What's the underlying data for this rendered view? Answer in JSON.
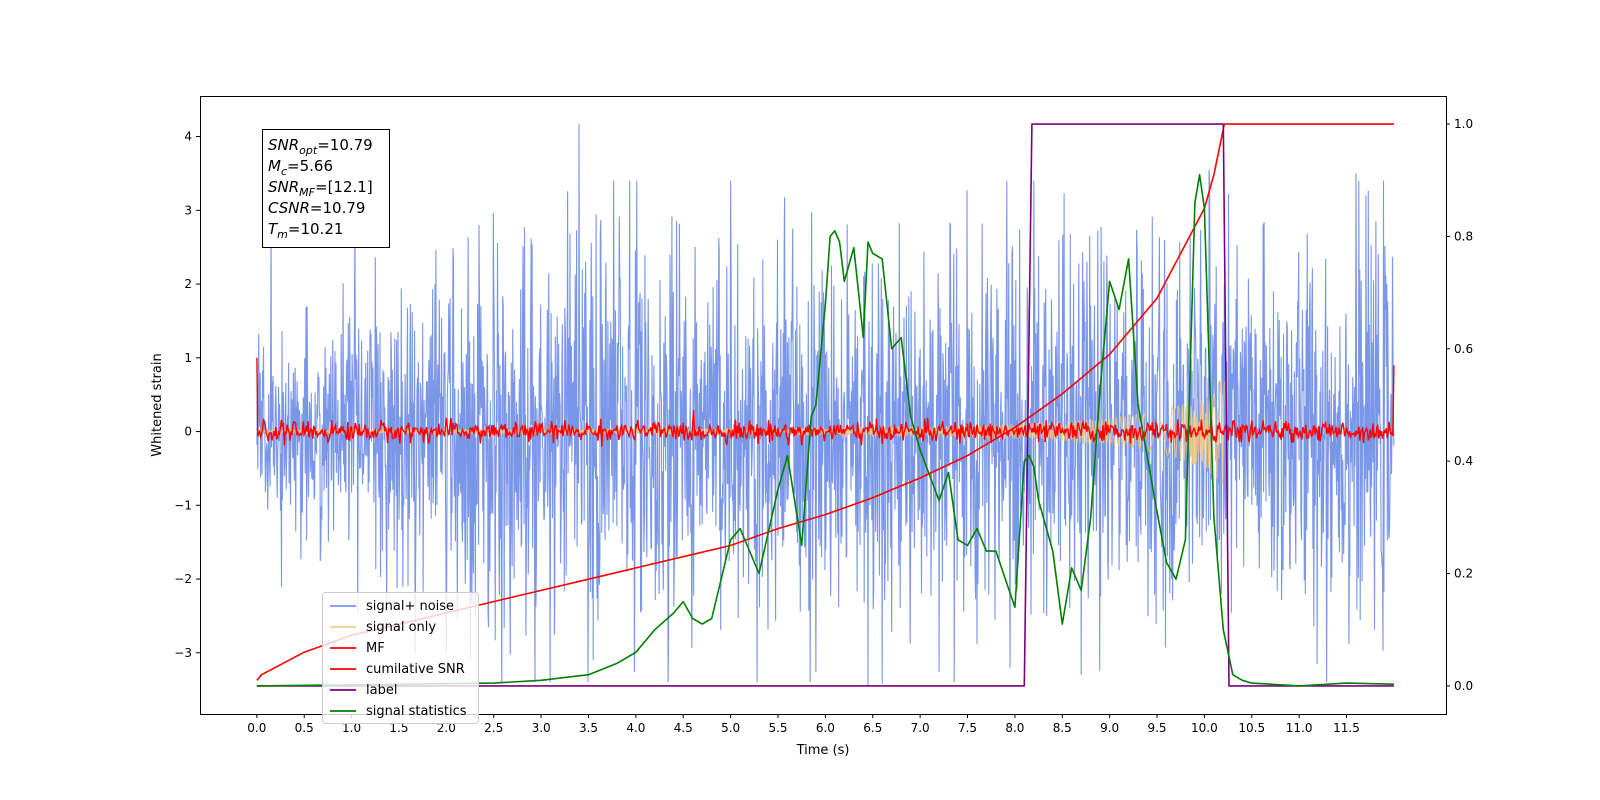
{
  "chart_data": {
    "type": "line",
    "title": "",
    "xlabel": "Time (s)",
    "ylabel": "Whitened strain",
    "ylabel_right": "",
    "xlim": [
      -0.6,
      12.55
    ],
    "ylim": [
      -3.83,
      4.55
    ],
    "ylim_right": [
      -0.05,
      1.05
    ],
    "x_ticks": [
      "0.0",
      "0.5",
      "1.0",
      "1.5",
      "2.0",
      "2.5",
      "3.0",
      "3.5",
      "4.0",
      "4.5",
      "5.0",
      "5.5",
      "6.0",
      "6.5",
      "7.0",
      "7.5",
      "8.0",
      "8.5",
      "9.0",
      "9.5",
      "10.0",
      "10.5",
      "11.0",
      "11.5"
    ],
    "y_ticks_left": [
      "4",
      "3",
      "2",
      "1",
      "0",
      "−1",
      "−2",
      "−3"
    ],
    "y_ticks_right": [
      "1.0",
      "0.8",
      "0.6",
      "0.4",
      "0.2",
      "0.0"
    ],
    "grid": false,
    "legend_position": "lower-left",
    "annotation": [
      {
        "var": "SNR",
        "sub": "opt",
        "value": "=10.79"
      },
      {
        "var": "M",
        "sub": "c",
        "value": "=5.66"
      },
      {
        "var": "SNR",
        "sub": "MF",
        "value": "=[12.1]"
      },
      {
        "var": "CSNR",
        "sub": "",
        "value": "=10.79"
      },
      {
        "var": "T",
        "sub": "m",
        "value": "=10.21"
      }
    ],
    "series": [
      {
        "name": "signal+ noise",
        "color": "#7a96e8",
        "axis": "left",
        "x_range": [
          0,
          12
        ],
        "envelope": [
          [
            0,
            1.6
          ],
          [
            3.4,
            4.17
          ],
          [
            6.45,
            3.4
          ],
          [
            12,
            3.5
          ]
        ],
        "extremes": {
          "max": 4.17,
          "min": -3.45
        }
      },
      {
        "name": "signal only",
        "color": "#f5c77a",
        "axis": "left",
        "x_range": [
          0,
          10.21
        ],
        "envelope": [
          [
            0,
            0.02
          ],
          [
            6,
            0.05
          ],
          [
            8,
            0.1
          ],
          [
            9,
            0.18
          ],
          [
            9.5,
            0.28
          ],
          [
            10,
            0.5
          ],
          [
            10.21,
            0.75
          ]
        ]
      },
      {
        "name": "MF",
        "color": "#ff0000",
        "axis": "left",
        "x_range": [
          0,
          12
        ],
        "band": 0.15,
        "edge_values": [
          1.0,
          0.9
        ]
      },
      {
        "name": "cumilative SNR",
        "color": "#ff0000",
        "axis": "right",
        "x": [
          0,
          0.05,
          0.5,
          1.0,
          1.5,
          2.0,
          2.5,
          3.0,
          3.5,
          4.0,
          4.5,
          5.0,
          5.5,
          6.0,
          6.5,
          7.0,
          7.5,
          8.0,
          8.5,
          9.0,
          9.5,
          10.0,
          10.1,
          10.21,
          10.5,
          11.0,
          11.5,
          12.0
        ],
        "y": [
          0.01,
          0.02,
          0.06,
          0.09,
          0.11,
          0.13,
          0.15,
          0.17,
          0.19,
          0.21,
          0.23,
          0.25,
          0.28,
          0.305,
          0.335,
          0.37,
          0.41,
          0.46,
          0.52,
          0.59,
          0.69,
          0.85,
          0.91,
          1.0,
          1.0,
          1.0,
          1.0,
          1.0
        ]
      },
      {
        "name": "label",
        "color": "#7b0080",
        "axis": "right",
        "x": [
          0,
          8.1,
          8.18,
          10.2,
          10.26,
          12.0
        ],
        "y": [
          0,
          0,
          1.0,
          1.0,
          0,
          0
        ]
      },
      {
        "name": "signal statistics",
        "color": "#008000",
        "axis": "right",
        "x": [
          0,
          2.5,
          3.0,
          3.5,
          3.8,
          4.0,
          4.2,
          4.4,
          4.5,
          4.6,
          4.7,
          4.8,
          5.0,
          5.1,
          5.3,
          5.5,
          5.6,
          5.75,
          5.85,
          5.9,
          6.0,
          6.05,
          6.1,
          6.15,
          6.2,
          6.3,
          6.4,
          6.45,
          6.5,
          6.6,
          6.7,
          6.8,
          6.9,
          7.0,
          7.2,
          7.3,
          7.4,
          7.5,
          7.6,
          7.7,
          7.8,
          7.9,
          8.0,
          8.1,
          8.15,
          8.2,
          8.25,
          8.4,
          8.5,
          8.6,
          8.7,
          8.8,
          8.9,
          9.0,
          9.1,
          9.2,
          9.3,
          9.5,
          9.6,
          9.7,
          9.8,
          9.9,
          9.95,
          10.0,
          10.1,
          10.2,
          10.3,
          10.4,
          10.5,
          11.0,
          11.5,
          12.0
        ],
        "y": [
          0.0,
          0.005,
          0.01,
          0.02,
          0.04,
          0.06,
          0.1,
          0.13,
          0.15,
          0.12,
          0.11,
          0.12,
          0.26,
          0.28,
          0.2,
          0.35,
          0.41,
          0.25,
          0.48,
          0.5,
          0.68,
          0.8,
          0.81,
          0.79,
          0.72,
          0.78,
          0.62,
          0.79,
          0.77,
          0.76,
          0.6,
          0.62,
          0.48,
          0.42,
          0.33,
          0.38,
          0.26,
          0.25,
          0.28,
          0.24,
          0.24,
          0.19,
          0.14,
          0.4,
          0.41,
          0.39,
          0.33,
          0.24,
          0.11,
          0.21,
          0.17,
          0.3,
          0.53,
          0.72,
          0.67,
          0.76,
          0.5,
          0.31,
          0.22,
          0.19,
          0.26,
          0.86,
          0.91,
          0.85,
          0.3,
          0.1,
          0.02,
          0.01,
          0.005,
          0.0,
          0.005,
          0.003
        ]
      }
    ]
  }
}
